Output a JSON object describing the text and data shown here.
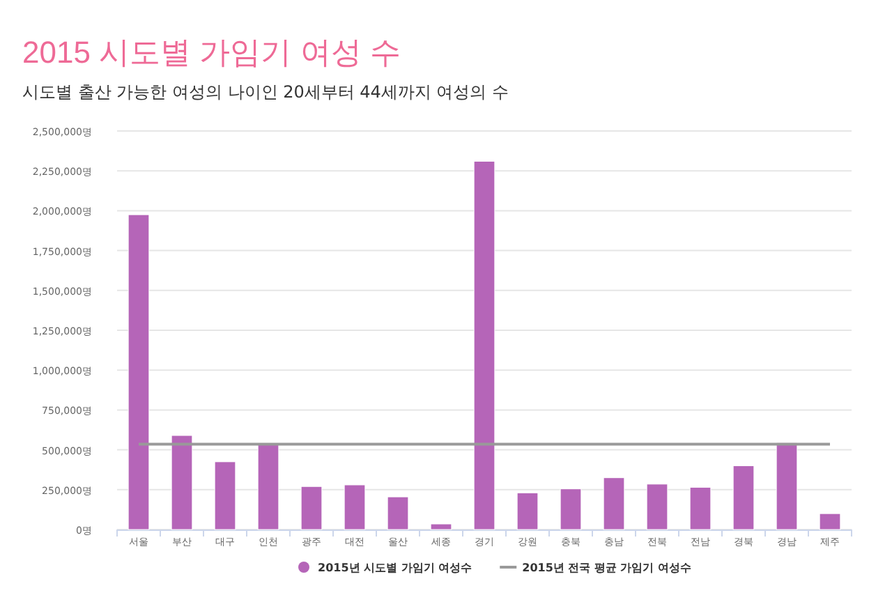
{
  "chart_data": {
    "type": "bar",
    "title": "2015 시도별 가임기 여성 수",
    "subtitle": "시도별 출산 가능한 여성의 나이인 20세부터 44세까지 여성의 수",
    "categories": [
      "서울",
      "부산",
      "대구",
      "인천",
      "광주",
      "대전",
      "울산",
      "세종",
      "경기",
      "강원",
      "충북",
      "충남",
      "전북",
      "전남",
      "경북",
      "경남",
      "제주"
    ],
    "series": [
      {
        "name": "2015년 시도별 가임기 여성수",
        "color": "#b565b8",
        "values": [
          1975000,
          590000,
          425000,
          535000,
          270000,
          280000,
          205000,
          35000,
          2310000,
          230000,
          255000,
          325000,
          285000,
          265000,
          400000,
          545000,
          100000
        ]
      },
      {
        "name": "2015년 전국 평균 가임기 여성수",
        "type": "line",
        "color": "#999999",
        "values": [
          535000,
          535000,
          535000,
          535000,
          535000,
          535000,
          535000,
          535000,
          535000,
          535000,
          535000,
          535000,
          535000,
          535000,
          535000,
          535000,
          535000
        ]
      }
    ],
    "ylim": [
      0,
      2500000
    ],
    "yticks": [
      {
        "value": 0,
        "label": "0명"
      },
      {
        "value": 250000,
        "label": "250,000명"
      },
      {
        "value": 500000,
        "label": "500,000명"
      },
      {
        "value": 750000,
        "label": "750,000명"
      },
      {
        "value": 1000000,
        "label": "1,000,000명"
      },
      {
        "value": 1250000,
        "label": "1,250,000명"
      },
      {
        "value": 1500000,
        "label": "1,500,000명"
      },
      {
        "value": 1750000,
        "label": "1,750,000명"
      },
      {
        "value": 2000000,
        "label": "2,000,000명"
      },
      {
        "value": 2250000,
        "label": "2,250,000명"
      },
      {
        "value": 2500000,
        "label": "2,500,000명"
      }
    ],
    "grid": "y",
    "legend": "bottom"
  }
}
